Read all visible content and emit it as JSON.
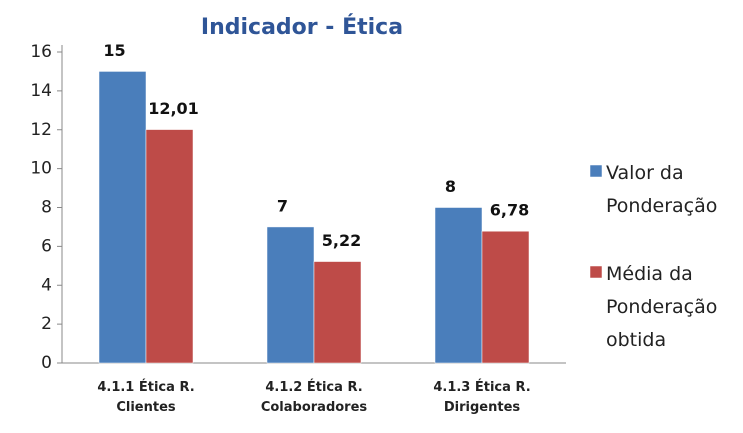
{
  "chart_data": {
    "type": "bar",
    "title": "Indicador - Ética",
    "categories": [
      "4.1.1 Ética R. Clientes",
      "4.1.2 Ética R. Colaboradores",
      "4.1.3 Ética R. Dirigentes"
    ],
    "series": [
      {
        "name": "Valor da Ponderação",
        "color": "#4a7ebb",
        "values": [
          15,
          7,
          8
        ]
      },
      {
        "name": "Média da Ponderação obtida",
        "color": "#be4b48",
        "values": [
          12.01,
          5.22,
          6.78
        ],
        "value_labels": [
          "12,01",
          "5,22",
          "6,78"
        ]
      }
    ],
    "ylim": [
      0,
      16
    ],
    "yticks": [
      0,
      2,
      4,
      6,
      8,
      10,
      12,
      14,
      16
    ],
    "grid": false,
    "legend": "right"
  }
}
